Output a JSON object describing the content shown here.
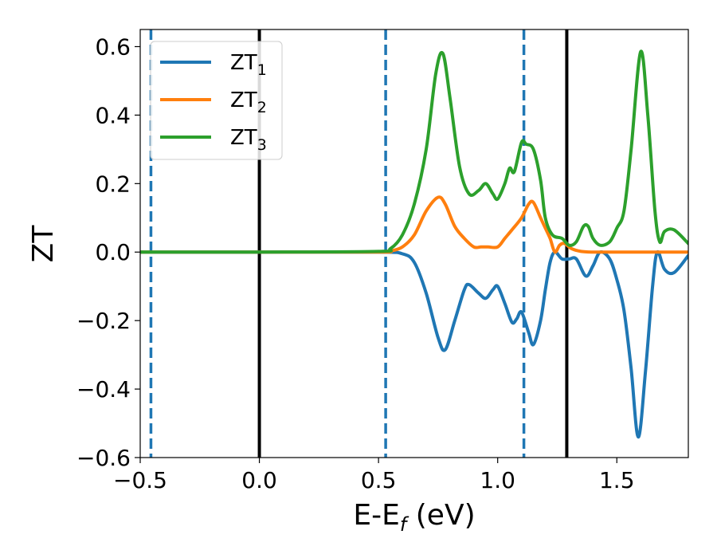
{
  "chart_data": {
    "type": "line",
    "title": "",
    "xlabel": "E-E",
    "xlabel_sub": "f",
    "xlabel_unit": " (eV)",
    "ylabel": "ZT",
    "xlim": [
      -0.5,
      1.8
    ],
    "ylim": [
      -0.6,
      0.65
    ],
    "x_ticks": [
      -0.5,
      0.0,
      0.5,
      1.0,
      1.5
    ],
    "x_tick_labels": [
      "−0.5",
      "0.0",
      "0.5",
      "1.0",
      "1.5"
    ],
    "y_ticks": [
      -0.6,
      -0.4,
      -0.2,
      0.0,
      0.2,
      0.4,
      0.6
    ],
    "y_tick_labels": [
      "−0.6",
      "−0.4",
      "−0.2",
      "0.0",
      "0.2",
      "0.4",
      "0.6"
    ],
    "grid": false,
    "legend_position": "top-left",
    "vlines": [
      {
        "x": -0.455,
        "style": "dashed",
        "color": "#1f77b4"
      },
      {
        "x": 0.0,
        "style": "solid",
        "color": "#000000"
      },
      {
        "x": 0.53,
        "style": "dashed",
        "color": "#1f77b4"
      },
      {
        "x": 1.11,
        "style": "dashed",
        "color": "#1f77b4"
      },
      {
        "x": 1.29,
        "style": "solid",
        "color": "#000000"
      }
    ],
    "series": [
      {
        "name": "ZT",
        "name_sub": "1",
        "color": "#1f77b4",
        "x": [
          -0.5,
          0.0,
          0.5,
          0.6,
          0.65,
          0.7,
          0.75,
          0.78,
          0.82,
          0.86,
          0.88,
          0.92,
          0.95,
          0.98,
          1.0,
          1.03,
          1.06,
          1.08,
          1.1,
          1.13,
          1.15,
          1.18,
          1.2,
          1.22,
          1.24,
          1.27,
          1.3,
          1.33,
          1.37,
          1.4,
          1.43,
          1.47,
          1.5,
          1.53,
          1.56,
          1.59,
          1.62,
          1.65,
          1.67,
          1.7,
          1.74,
          1.8
        ],
        "y": [
          0.0,
          0.0,
          0.0,
          -0.005,
          -0.03,
          -0.12,
          -0.25,
          -0.285,
          -0.2,
          -0.11,
          -0.095,
          -0.12,
          -0.135,
          -0.11,
          -0.1,
          -0.15,
          -0.205,
          -0.195,
          -0.175,
          -0.235,
          -0.27,
          -0.2,
          -0.11,
          -0.03,
          0.0,
          -0.02,
          -0.02,
          -0.02,
          -0.07,
          -0.04,
          0.0,
          -0.02,
          -0.08,
          -0.17,
          -0.34,
          -0.54,
          -0.35,
          -0.1,
          0.0,
          -0.05,
          -0.06,
          -0.01
        ]
      },
      {
        "name": "ZT",
        "name_sub": "2",
        "color": "#ff7f0e",
        "x": [
          -0.5,
          0.0,
          0.5,
          0.55,
          0.6,
          0.65,
          0.7,
          0.75,
          0.78,
          0.82,
          0.86,
          0.9,
          0.93,
          0.96,
          1.0,
          1.03,
          1.06,
          1.1,
          1.13,
          1.15,
          1.18,
          1.2,
          1.22,
          1.24,
          1.26,
          1.28,
          1.31,
          1.35,
          1.4,
          1.5,
          1.6,
          1.8
        ],
        "y": [
          0.0,
          0.0,
          0.0,
          0.003,
          0.015,
          0.05,
          0.12,
          0.16,
          0.14,
          0.075,
          0.04,
          0.015,
          0.015,
          0.015,
          0.015,
          0.04,
          0.065,
          0.1,
          0.14,
          0.145,
          0.1,
          0.07,
          0.04,
          0.0,
          0.02,
          0.025,
          0.01,
          0.002,
          0.0,
          0.0,
          0.0,
          0.0
        ]
      },
      {
        "name": "ZT",
        "name_sub": "3",
        "color": "#2ca02c",
        "x": [
          -0.5,
          0.0,
          0.5,
          0.55,
          0.6,
          0.65,
          0.7,
          0.74,
          0.77,
          0.8,
          0.84,
          0.88,
          0.92,
          0.95,
          0.98,
          1.0,
          1.03,
          1.05,
          1.07,
          1.1,
          1.12,
          1.15,
          1.18,
          1.2,
          1.23,
          1.27,
          1.3,
          1.33,
          1.36,
          1.38,
          1.4,
          1.43,
          1.47,
          1.5,
          1.53,
          1.56,
          1.6,
          1.63,
          1.66,
          1.68,
          1.7,
          1.74,
          1.8
        ],
        "y": [
          0.0,
          0.0,
          0.002,
          0.01,
          0.05,
          0.14,
          0.3,
          0.52,
          0.58,
          0.45,
          0.25,
          0.17,
          0.18,
          0.2,
          0.17,
          0.155,
          0.2,
          0.245,
          0.235,
          0.32,
          0.315,
          0.3,
          0.21,
          0.1,
          0.05,
          0.04,
          0.02,
          0.03,
          0.075,
          0.075,
          0.04,
          0.02,
          0.03,
          0.07,
          0.12,
          0.3,
          0.585,
          0.4,
          0.12,
          0.03,
          0.06,
          0.065,
          0.025
        ]
      }
    ]
  }
}
